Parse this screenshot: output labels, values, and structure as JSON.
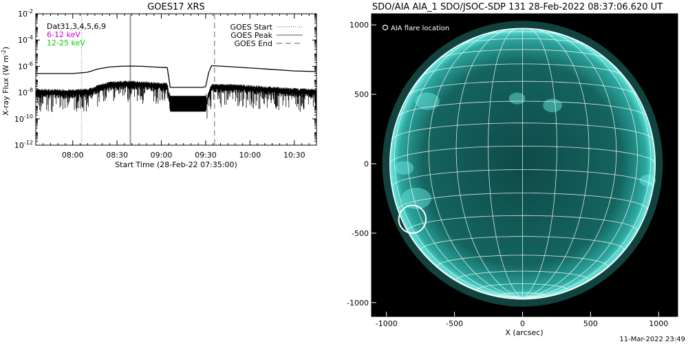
{
  "chart_data": [
    {
      "type": "line",
      "title": "GOES17 XRS",
      "xlabel": "Start Time (28-Feb-22 07:35:00)",
      "ylabel": "X-ray Flux (W m",
      "ylabel_sup": "-2",
      "ylabel_close": ")",
      "yscale": "log",
      "ylim_exp": [
        -12,
        -2
      ],
      "ytick_exps": [
        -12,
        -10,
        -8,
        -6,
        -4,
        -2
      ],
      "xlim_min": [
        455,
        645
      ],
      "xticks": [
        {
          "min": 480,
          "label": "08:00"
        },
        {
          "min": 510,
          "label": "08:30"
        },
        {
          "min": 540,
          "label": "09:00"
        },
        {
          "min": 570,
          "label": "09:30"
        },
        {
          "min": 600,
          "label": "10:00"
        },
        {
          "min": 630,
          "label": "10:30"
        }
      ],
      "legend_left": [
        {
          "text": "Dat31,3,4,5,6,9",
          "color": "#000000"
        },
        {
          "text": "6-12 keV",
          "color": "#cc00cc"
        },
        {
          "text": "12-25 keV",
          "color": "#00cc00"
        }
      ],
      "legend_right": [
        {
          "text": "GOES Start",
          "style": "dotted"
        },
        {
          "text": "GOES Peak",
          "style": "solid"
        },
        {
          "text": "GOES End",
          "style": "dashed"
        }
      ],
      "vlines": [
        {
          "name": "GOES Start",
          "min": 486,
          "style": "dotted",
          "color": "#999999"
        },
        {
          "name": "GOES Peak",
          "min": 519,
          "style": "solid",
          "color": "#999999"
        },
        {
          "name": "GOES End",
          "min": 576,
          "style": "dashed",
          "color": "#999999"
        }
      ],
      "series": [
        {
          "name": "long",
          "color": "#000000",
          "points": [
            [
              455,
              -6.55
            ],
            [
              480,
              -6.55
            ],
            [
              490,
              -6.45
            ],
            [
              497,
              -6.2
            ],
            [
              505,
              -6.05
            ],
            [
              512,
              -6.0
            ],
            [
              519,
              -5.98
            ],
            [
              527,
              -6.0
            ],
            [
              535,
              -6.05
            ],
            [
              544,
              -6.1
            ],
            [
              546,
              -7.6
            ],
            [
              568,
              -7.6
            ],
            [
              570,
              -7.55
            ],
            [
              572,
              -6.5
            ],
            [
              574,
              -5.95
            ],
            [
              590,
              -6.05
            ],
            [
              610,
              -6.2
            ],
            [
              630,
              -6.35
            ],
            [
              645,
              -6.4
            ]
          ]
        },
        {
          "name": "short",
          "color": "#000000",
          "noisy": true,
          "points": [
            [
              455,
              -8.0
            ],
            [
              480,
              -8.05
            ],
            [
              490,
              -8.0
            ],
            [
              497,
              -7.7
            ],
            [
              505,
              -7.45
            ],
            [
              512,
              -7.4
            ],
            [
              519,
              -7.38
            ],
            [
              527,
              -7.42
            ],
            [
              535,
              -7.5
            ],
            [
              544,
              -7.55
            ],
            [
              546,
              -9.0
            ],
            [
              570,
              -9.0
            ],
            [
              572,
              -8.2
            ],
            [
              574,
              -7.6
            ],
            [
              590,
              -7.65
            ],
            [
              610,
              -7.8
            ],
            [
              630,
              -7.95
            ],
            [
              645,
              -8.0
            ]
          ]
        }
      ]
    },
    {
      "type": "image",
      "title": "SDO/AIA AIA_1 SDO/JSOC-SDP 131 28-Feb-2022 08:37:06.620 UT",
      "xlabel": "X (arcsec)",
      "xlim": [
        -1110,
        1140
      ],
      "ylim": [
        -1100,
        1080
      ],
      "xticks": [
        -1000,
        -500,
        0,
        500,
        1000
      ],
      "yticks": [
        -1000,
        -500,
        0,
        500,
        1000
      ],
      "solar_radius": 975,
      "disk_color": "#3fd6cc",
      "legend": "AIA flare location",
      "flare_location": {
        "x": -810,
        "y": -400,
        "radius": 100
      },
      "footer": "11-Mar-2022 23:49"
    }
  ]
}
